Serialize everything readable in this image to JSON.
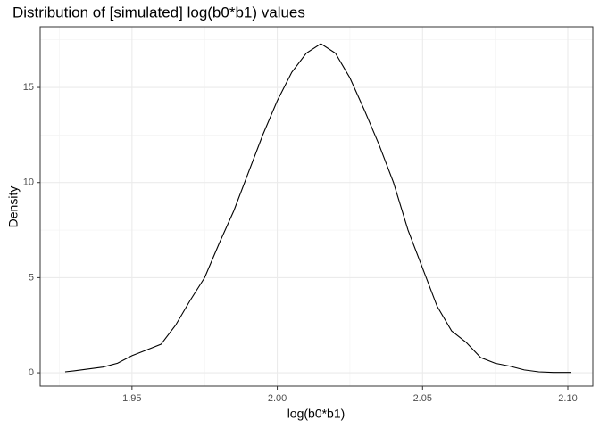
{
  "chart_data": {
    "type": "line",
    "title": "Distribution of [simulated] log(b0*b1) values",
    "x_label": "log(b0*b1)",
    "y_label": "Density",
    "x": [
      1.927,
      1.93,
      1.94,
      1.945,
      1.95,
      1.955,
      1.96,
      1.965,
      1.97,
      1.975,
      1.98,
      1.985,
      1.99,
      1.995,
      2.0,
      2.005,
      2.01,
      2.015,
      2.02,
      2.025,
      2.03,
      2.035,
      2.04,
      2.045,
      2.05,
      2.055,
      2.06,
      2.065,
      2.07,
      2.075,
      2.08,
      2.085,
      2.09,
      2.095,
      2.101
    ],
    "series": [
      {
        "color": "#000000",
        "values": [
          0.05,
          0.1,
          0.3,
          0.5,
          0.9,
          1.2,
          1.5,
          2.5,
          3.8,
          5.0,
          6.8,
          8.5,
          10.5,
          12.5,
          14.3,
          15.8,
          16.8,
          17.3,
          16.8,
          15.5,
          13.8,
          12.0,
          10.0,
          7.5,
          5.5,
          3.5,
          2.2,
          1.6,
          0.8,
          0.5,
          0.35,
          0.15,
          0.05,
          0.02,
          0.02
        ]
      }
    ],
    "xlim": [
      1.9184,
      2.1086
    ],
    "ylim": [
      -0.7,
      18.19
    ],
    "xticks": [
      1.95,
      {
        "value": 2.0,
        "label": "2.00"
      },
      2.05,
      {
        "value": 2.1,
        "label": "2.10"
      }
    ],
    "yticks": [
      0,
      5,
      10,
      15
    ],
    "grid": true
  }
}
